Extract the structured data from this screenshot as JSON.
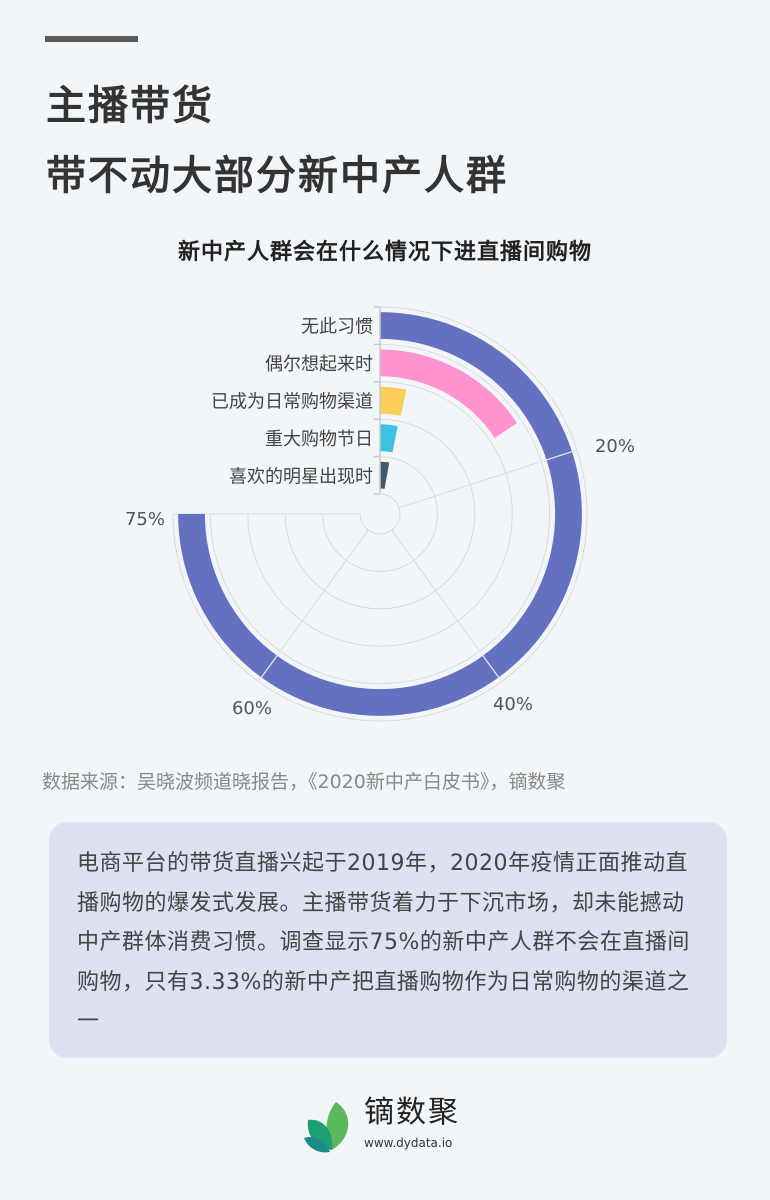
{
  "header": {
    "headline_line1": "主播带货",
    "headline_line2": "带不动大部分新中产人群"
  },
  "chart": {
    "title": "新中产人群会在什么情况下进直播间购物",
    "categories": [
      "无此习惯",
      "偶尔想起来时",
      "已成为日常购物渠道",
      "重大购物节日",
      "喜欢的明星出现时"
    ],
    "angle_tick_labels": [
      "20%",
      "40%",
      "60%",
      "75%"
    ]
  },
  "chart_data": {
    "type": "bar",
    "subtype": "polar-radial-bar",
    "title": "新中产人群会在什么情况下进直播间购物",
    "categories": [
      "无此习惯",
      "偶尔想起来时",
      "已成为日常购物渠道",
      "重大购物节日",
      "喜欢的明星出现时"
    ],
    "values": [
      75,
      15.67,
      3.33,
      3.17,
      2.83
    ],
    "unit": "%",
    "colors": [
      "#6471c0",
      "#ff92cf",
      "#fdcd5a",
      "#3ec2e3",
      "#44586a"
    ],
    "angle_axis": {
      "min": 0,
      "max": 100,
      "ticks": [
        "20%",
        "40%",
        "60%",
        "75%"
      ]
    },
    "xlabel": "",
    "ylabel": "",
    "grid": true,
    "legend": "none"
  },
  "source": {
    "text": "数据来源：吴晓波频道晓报告，《2020新中产白皮书》，镝数聚"
  },
  "note": {
    "text": "电商平台的带货直播兴起于2019年，2020年疫情正面推动直播购物的爆发式发展。主播带货着力于下沉市场，却未能撼动中产群体消费习惯。调查显示75%的新中产人群不会在直播间购物，只有3.33%的新中产把直播购物作为日常购物的渠道之一"
  },
  "footer": {
    "brand_name": "镝数聚",
    "brand_url": "www.dydata.io",
    "brand_colors": [
      "#5cb85c",
      "#1e9f72",
      "#1c8a8a"
    ]
  },
  "colors": {
    "background": "#f3f6f9",
    "note_box": "#dde1f1",
    "accent_bar": "#5a5a5a"
  }
}
